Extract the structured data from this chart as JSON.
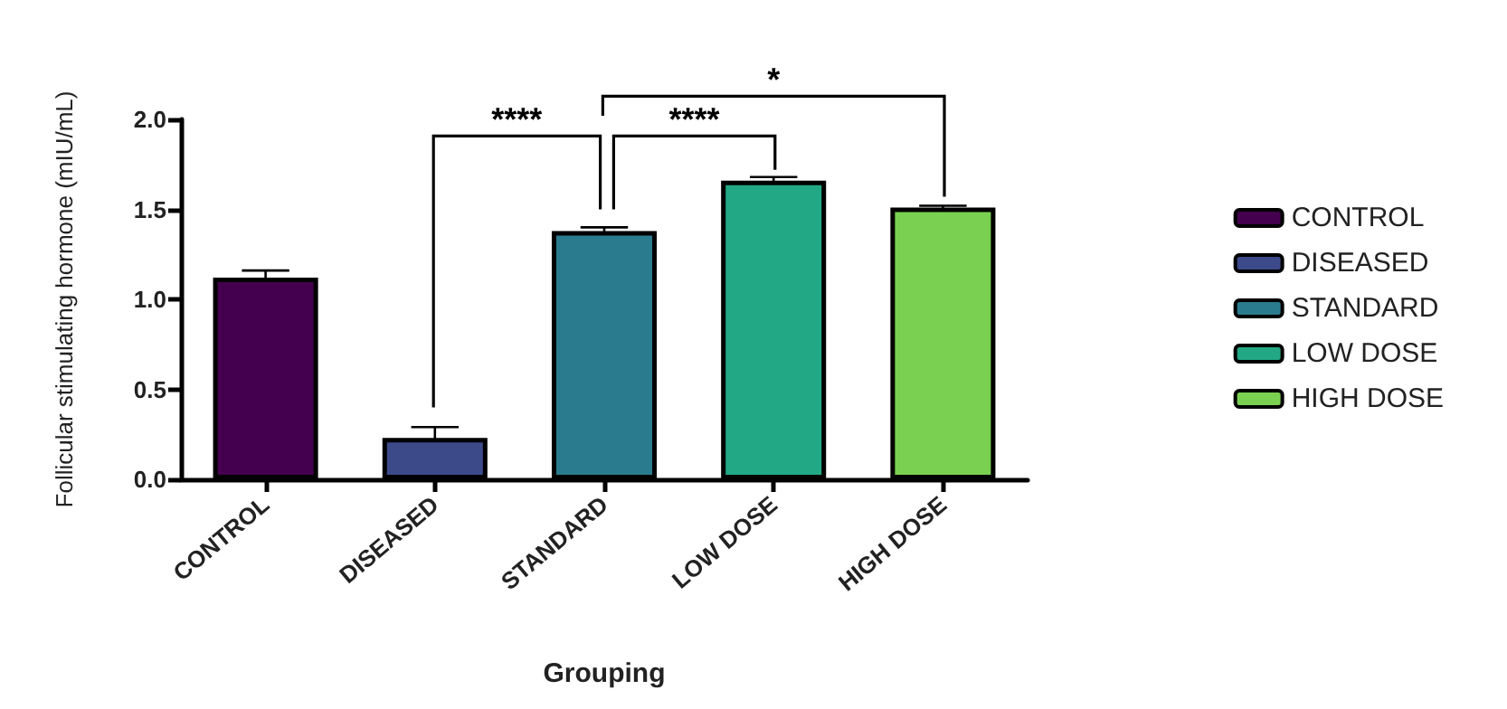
{
  "chart_data": {
    "type": "bar",
    "xlabel": "Grouping",
    "ylabel": "Follicular stimulating hormone (mIU/mL)",
    "categories": [
      "CONTROL",
      "DISEASED",
      "STANDARD",
      "LOW DOSE",
      "HIGH DOSE"
    ],
    "series": [
      {
        "name": "CONTROL",
        "color": "#44004f",
        "values": [
          1.12,
          null,
          null,
          null,
          null
        ],
        "errors": [
          0.04,
          null,
          null,
          null,
          null
        ]
      },
      {
        "name": "DISEASED",
        "color": "#3d4a8a",
        "values": [
          null,
          0.23,
          null,
          null,
          null
        ],
        "errors": [
          null,
          0.06,
          null,
          null,
          null
        ]
      },
      {
        "name": "STANDARD",
        "color": "#2b7b8f",
        "values": [
          null,
          null,
          1.38,
          null,
          null
        ],
        "errors": [
          null,
          null,
          0.02,
          null,
          null
        ]
      },
      {
        "name": "LOW DOSE",
        "color": "#22a884",
        "values": [
          null,
          null,
          null,
          1.66,
          null
        ],
        "errors": [
          null,
          null,
          null,
          0.02,
          null
        ]
      },
      {
        "name": "HIGH DOSE",
        "color": "#7ad151",
        "values": [
          null,
          null,
          null,
          null,
          1.51
        ],
        "errors": [
          null,
          null,
          null,
          null,
          0.01
        ]
      }
    ],
    "stacked": true,
    "ylim": [
      0,
      2
    ],
    "yticks": [
      {
        "value": 0,
        "label": "0.0"
      },
      0.5,
      {
        "value": 1,
        "label": "1.0"
      },
      1.5,
      {
        "value": 2,
        "label": "2.0"
      }
    ],
    "grid": false,
    "legend": "right",
    "annotations": [
      "****",
      "****",
      "*"
    ]
  }
}
